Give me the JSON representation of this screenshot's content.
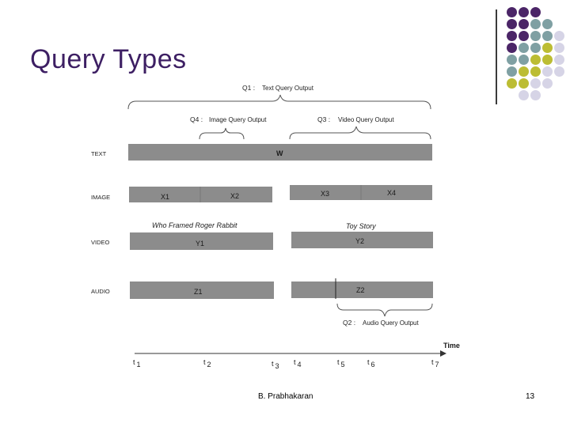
{
  "slide": {
    "title": "Query Types",
    "author": "B. Prabhakaran",
    "page": "13"
  },
  "palette": {
    "purple": "#4b2567",
    "teal": "#7fa0a3",
    "olive": "#bcbd33",
    "lavender": "#d6d4e6",
    "bar": "#8c8c8c"
  },
  "queries": {
    "q1": {
      "id": "Q1 :",
      "label": "Text Query Output"
    },
    "q4": {
      "id": "Q4 :",
      "label": "Image Query Output"
    },
    "q3": {
      "id": "Q3 :",
      "label": "Video Query Output"
    },
    "q2": {
      "id": "Q2 :",
      "label": "Audio Query Output"
    }
  },
  "rows": {
    "text": "TEXT",
    "image": "IMAGE",
    "video": "VIDEO",
    "audio": "AUDIO"
  },
  "segments": {
    "w": "W",
    "x1": "X1",
    "x2": "X2",
    "x3": "X3",
    "x4": "X4",
    "y1": "Y1",
    "y2": "Y2",
    "z1": "Z1",
    "z2": "Z2"
  },
  "titles": {
    "movie1": "Who Framed Roger Rabbit",
    "movie2": "Toy Story"
  },
  "time_axis": {
    "label": "Time",
    "ticks": [
      {
        "t": "t",
        "sub": "1"
      },
      {
        "t": "t",
        "sub": "2"
      },
      {
        "t": "t",
        "sub": "3"
      },
      {
        "t": "t",
        "sub": "4"
      },
      {
        "t": "t",
        "sub": "5"
      },
      {
        "t": "t",
        "sub": "6"
      },
      {
        "t": "t",
        "sub": "7"
      }
    ]
  }
}
